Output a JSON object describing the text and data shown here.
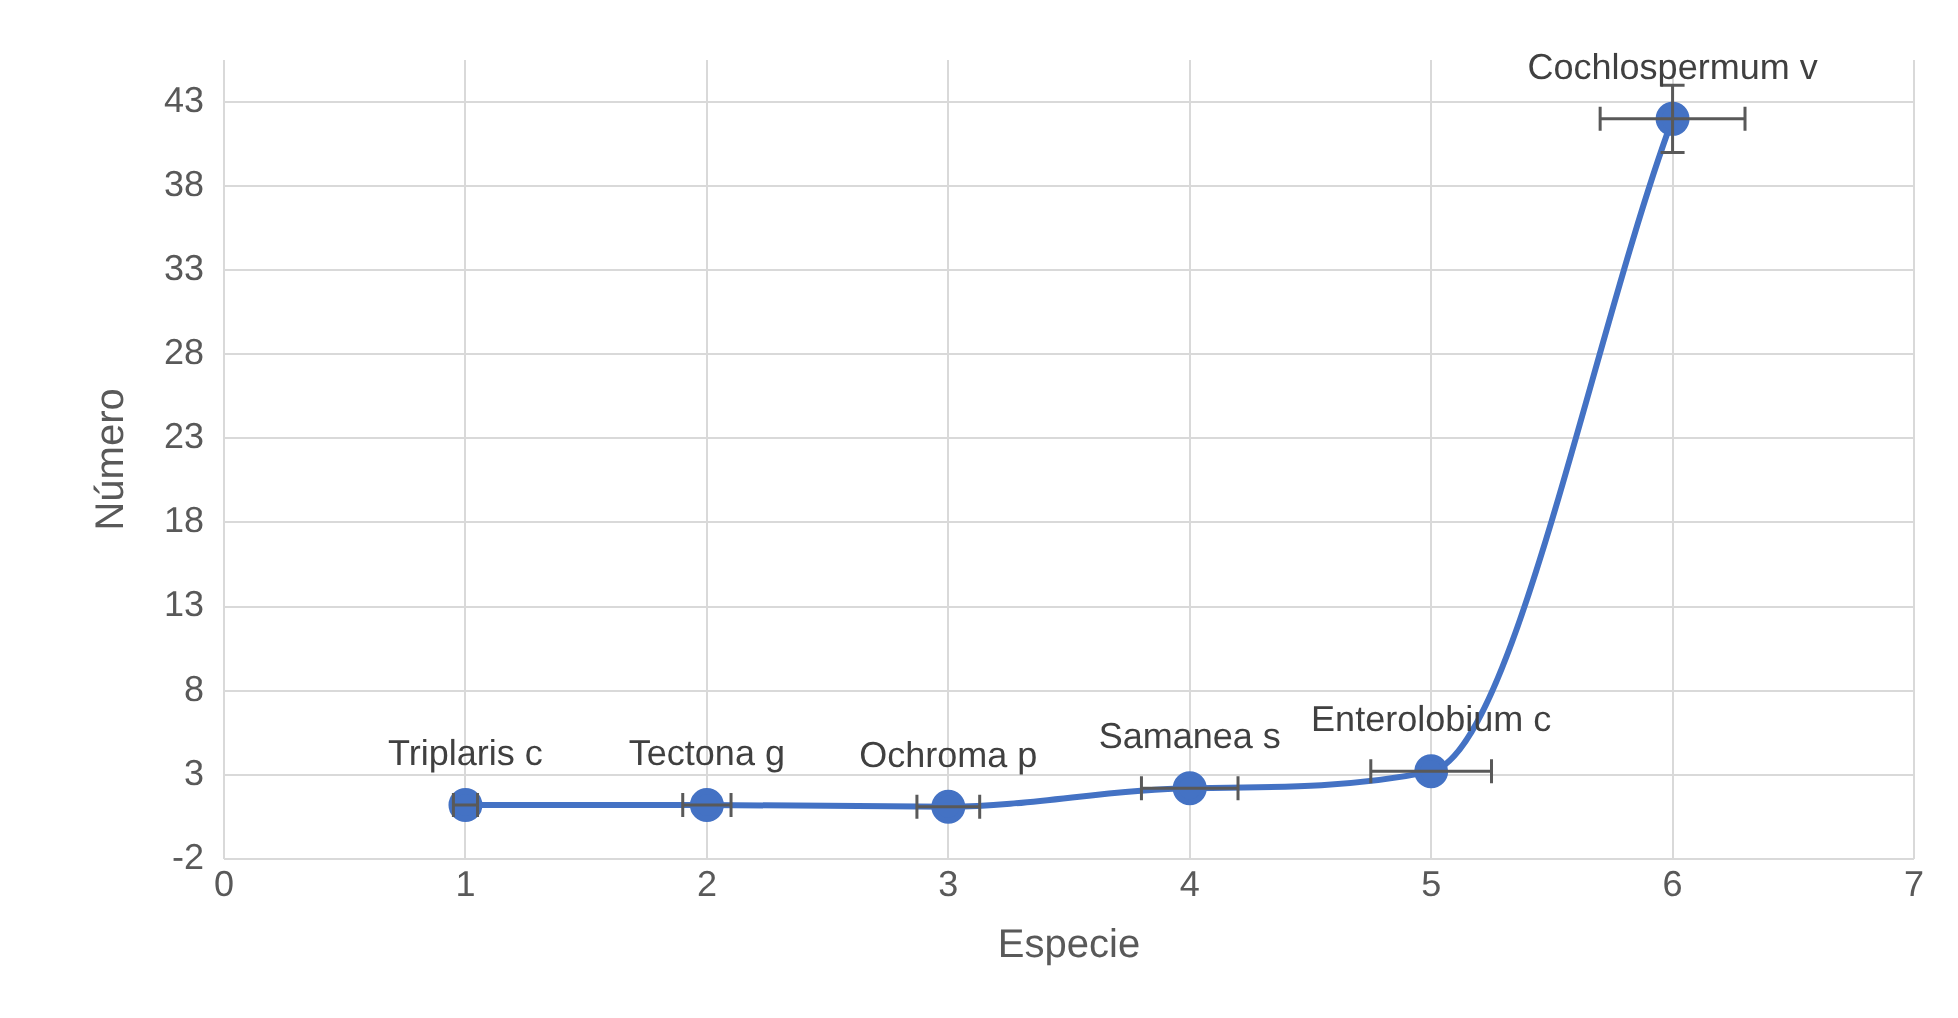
{
  "chart_data": {
    "type": "line",
    "xlabel": "Especie",
    "ylabel": "Número",
    "x": [
      1,
      2,
      3,
      4,
      5,
      6
    ],
    "series": [
      {
        "color": "#4472c4",
        "values": [
          1.2,
          1.2,
          1.1,
          2.2,
          3.2,
          42
        ],
        "errors": [
          null,
          null,
          null,
          null,
          null,
          2
        ],
        "xerrors": [
          0.05,
          0.1,
          0.13,
          0.2,
          0.25,
          0.3
        ]
      }
    ],
    "xlim": [
      0,
      7
    ],
    "xticks": [
      0,
      1,
      2,
      3,
      4,
      5,
      6,
      7
    ],
    "ylim": [
      -2,
      45.5
    ],
    "yticks": [
      -2,
      3,
      8,
      13,
      18,
      23,
      28,
      33,
      38,
      43
    ],
    "grid": true,
    "legend": false,
    "marker": "circle",
    "line_style": "solid",
    "annotations": [
      {
        "text": "Triplaris c",
        "x": 1,
        "y": 1.2
      },
      {
        "text": "Tectona g",
        "x": 2,
        "y": 1.2
      },
      {
        "text": "Ochroma p",
        "x": 3,
        "y": 1.1
      },
      {
        "text": "Samanea s",
        "x": 4,
        "y": 2.2
      },
      {
        "text": "Enterolobium c",
        "x": 5,
        "y": 3.2
      },
      {
        "text": "Cochlospermum v",
        "x": 6,
        "y": 42
      }
    ]
  }
}
